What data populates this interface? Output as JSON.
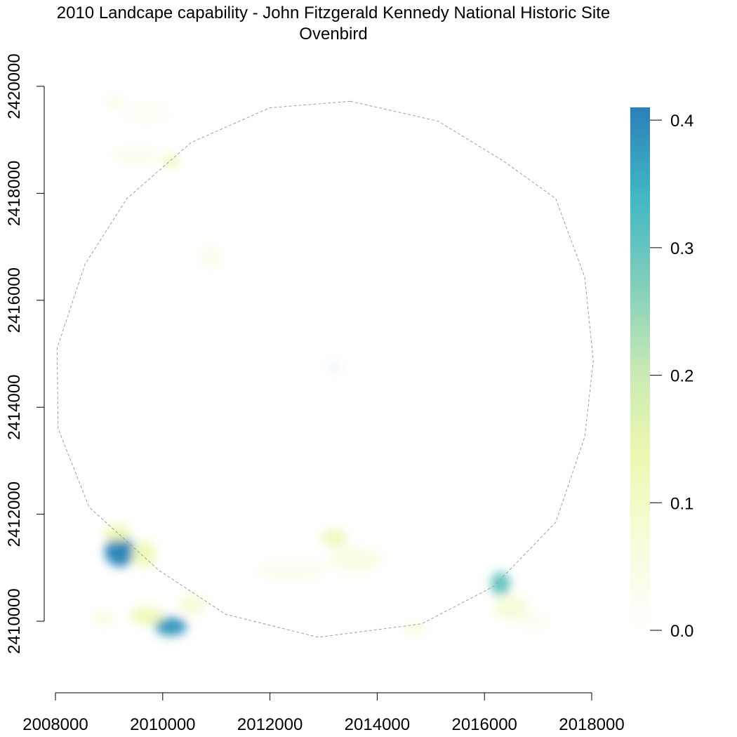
{
  "chart_data": {
    "type": "heatmap",
    "title": "2010 Landcape capability - John Fitzgerald Kennedy National Historic Site",
    "subtitle": "Ovenbird",
    "xlabel": "",
    "ylabel": "",
    "xlim": [
      2007800,
      2018200
    ],
    "ylim": [
      2409000,
      2420500
    ],
    "x_ticks": [
      2008000,
      2010000,
      2012000,
      2014000,
      2016000,
      2018000
    ],
    "x_tick_labels": [
      "2008000",
      "2010000",
      "2012000",
      "2014000",
      "2016000",
      "2018000"
    ],
    "y_ticks": [
      2410000,
      2412000,
      2414000,
      2416000,
      2418000,
      2420000
    ],
    "y_tick_labels": [
      "2410000",
      "2412000",
      "2414000",
      "2416000",
      "2418000",
      "2420000"
    ],
    "grid": false,
    "legend": {
      "placement": "right",
      "min": 0.0,
      "max": 0.41,
      "ticks": [
        0.0,
        0.1,
        0.2,
        0.3,
        0.4
      ],
      "tick_labels": [
        "0.0",
        "0.1",
        "0.2",
        "0.3",
        "0.4"
      ],
      "colors": [
        "#ffffff",
        "#f7fcdb",
        "#edf8b1",
        "#c7e9b4",
        "#7fcdbb",
        "#41b6c4",
        "#2c7fb8"
      ]
    },
    "boundary": {
      "style": "dashed",
      "color": "#a0a0a0",
      "points": [
        [
          2013500,
          2419720
        ],
        [
          2012000,
          2419600
        ],
        [
          2010530,
          2418950
        ],
        [
          2009330,
          2417900
        ],
        [
          2008550,
          2416670
        ],
        [
          2008030,
          2415100
        ],
        [
          2008050,
          2413600
        ],
        [
          2008630,
          2412130
        ],
        [
          2009930,
          2410950
        ],
        [
          2011170,
          2410130
        ],
        [
          2012900,
          2409700
        ],
        [
          2014830,
          2409950
        ],
        [
          2016170,
          2410650
        ],
        [
          2017330,
          2411850
        ],
        [
          2017870,
          2413450
        ],
        [
          2018030,
          2414870
        ],
        [
          2017870,
          2416430
        ],
        [
          2017330,
          2417900
        ],
        [
          2016330,
          2418620
        ],
        [
          2015130,
          2419350
        ]
      ]
    },
    "hotspots": [
      {
        "x": 2009200,
        "y": 2411300,
        "rx": 280,
        "ry": 280,
        "value": 0.4
      },
      {
        "x": 2009150,
        "y": 2411650,
        "rx": 250,
        "ry": 150,
        "value": 0.13
      },
      {
        "x": 2009650,
        "y": 2411250,
        "rx": 220,
        "ry": 260,
        "value": 0.12
      },
      {
        "x": 2010150,
        "y": 2409900,
        "rx": 300,
        "ry": 170,
        "value": 0.38
      },
      {
        "x": 2009700,
        "y": 2410100,
        "rx": 320,
        "ry": 170,
        "value": 0.12
      },
      {
        "x": 2010550,
        "y": 2410300,
        "rx": 260,
        "ry": 200,
        "value": 0.07
      },
      {
        "x": 2016300,
        "y": 2410700,
        "rx": 180,
        "ry": 220,
        "value": 0.3
      },
      {
        "x": 2016500,
        "y": 2410250,
        "rx": 330,
        "ry": 230,
        "value": 0.07
      },
      {
        "x": 2013200,
        "y": 2411550,
        "rx": 240,
        "ry": 160,
        "value": 0.12
      },
      {
        "x": 2013600,
        "y": 2411150,
        "rx": 500,
        "ry": 230,
        "value": 0.05
      },
      {
        "x": 2012400,
        "y": 2410950,
        "rx": 650,
        "ry": 180,
        "value": 0.03
      },
      {
        "x": 2010150,
        "y": 2418600,
        "rx": 150,
        "ry": 120,
        "value": 0.12
      },
      {
        "x": 2009500,
        "y": 2418700,
        "rx": 450,
        "ry": 170,
        "value": 0.03
      },
      {
        "x": 2009100,
        "y": 2419700,
        "rx": 150,
        "ry": 100,
        "value": 0.06
      },
      {
        "x": 2009700,
        "y": 2419500,
        "rx": 450,
        "ry": 200,
        "value": 0.02
      },
      {
        "x": 2010900,
        "y": 2416800,
        "rx": 180,
        "ry": 200,
        "value": 0.04
      },
      {
        "x": 2014700,
        "y": 2409850,
        "rx": 200,
        "ry": 150,
        "value": 0.05
      },
      {
        "x": 2016900,
        "y": 2410000,
        "rx": 300,
        "ry": 150,
        "value": 0.03
      },
      {
        "x": 2008900,
        "y": 2410050,
        "rx": 200,
        "ry": 150,
        "value": 0.05
      },
      {
        "x": 2013200,
        "y": 2414750,
        "rx": 30,
        "ry": 20,
        "value": 0.41
      }
    ]
  }
}
